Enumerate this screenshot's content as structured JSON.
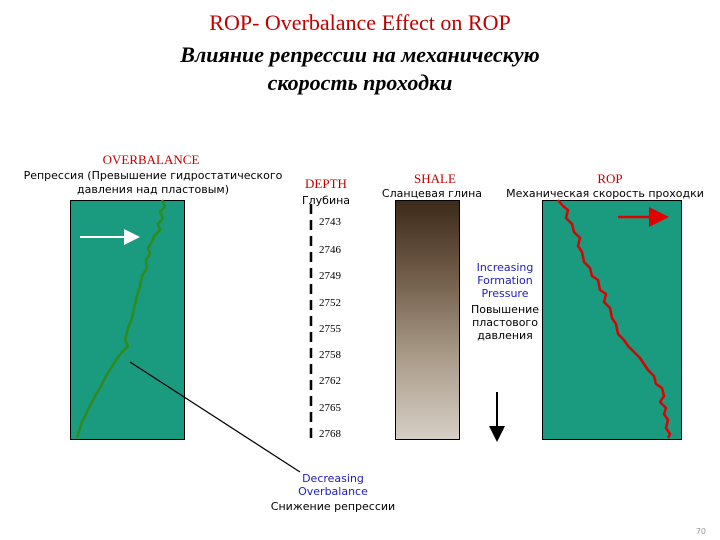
{
  "title": {
    "line1": "ROP- Overbalance Effect on ROP",
    "line2": "Влияние репрессии на механическую",
    "line3": "скорость проходки"
  },
  "headers": {
    "overbalance_en": "OVERBALANCE",
    "overbalance_ru_1": "Репрессия (Превышение гидростатического",
    "overbalance_ru_2": "давления над пластовым)",
    "depth_en": "DEPTH",
    "depth_ru": "Глубина",
    "shale_en": "SHALE",
    "shale_ru": "Сланцевая глина",
    "rop_en": "ROP",
    "rop_ru": "Механическая скорость проходки"
  },
  "depths": [
    "2743",
    "2746",
    "2749",
    "2752",
    "2755",
    "2758",
    "2762",
    "2765",
    "2768"
  ],
  "notes": {
    "increasing_en": [
      "Increasing",
      "Formation",
      "Pressure"
    ],
    "increasing_ru": [
      "Повышение",
      "пластового",
      "давления"
    ],
    "decreasing_en": [
      "Decreasing",
      "Overbalance"
    ],
    "decreasing_ru": "Снижение репрессии"
  },
  "page_number": "70",
  "colors": {
    "panel": "#1a9a7e",
    "overbalance_line": "#2e8b1e",
    "rop_line": "#e00000",
    "arrow_left": "#ffffff",
    "arrow_right": "#e00000",
    "title_en": "#c00000"
  }
}
